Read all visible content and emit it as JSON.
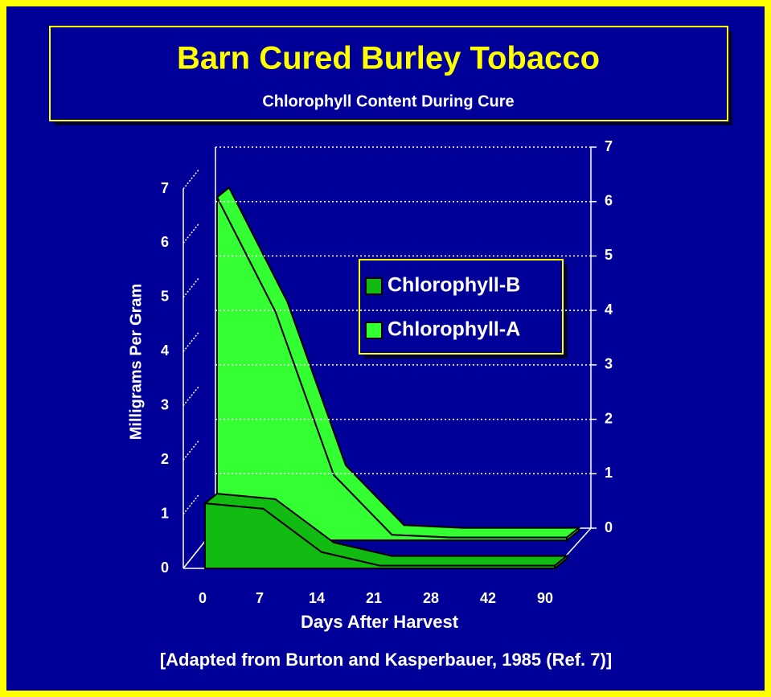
{
  "chart_data": {
    "type": "area",
    "title": "Barn Cured Burley Tobacco",
    "subtitle": "Chlorophyll Content During Cure",
    "y_label": "Milligrams Per Gram",
    "x_label": "Days After Harvest",
    "note": "[Adapted from Burton and Kasperbauer, 1985 (Ref. 7)]",
    "categories": [
      "0",
      "7",
      "14",
      "21",
      "28",
      "42",
      "90"
    ],
    "series": [
      {
        "name": "Chlorophyll-B",
        "color": "#11bb11",
        "values": [
          1.2,
          1.1,
          0.3,
          0.05,
          0.05,
          0.05,
          0.05
        ]
      },
      {
        "name": "Chlorophyll-A",
        "color": "#33ff33",
        "axis": "y2",
        "values": [
          6.3,
          4.2,
          1.2,
          0.1,
          0.05,
          0.05,
          0.05
        ]
      }
    ],
    "ylim": [
      0,
      7
    ],
    "yticks": [
      0,
      1,
      2,
      3,
      4,
      5,
      6,
      7
    ],
    "y2lim": [
      0,
      7
    ],
    "y2ticks": [
      0,
      1,
      2,
      3,
      4,
      5,
      6,
      7
    ],
    "grid": true
  }
}
